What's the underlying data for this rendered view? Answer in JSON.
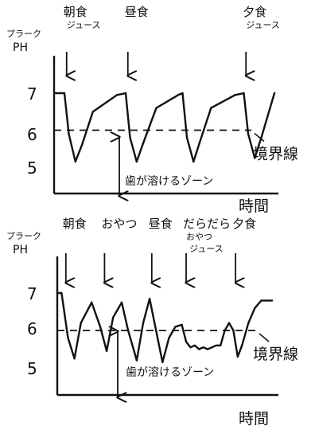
{
  "colors": {
    "ink": "#111111",
    "background": "#ffffff"
  },
  "chart_data": [
    {
      "type": "line",
      "ylabel_line1": "プラーク",
      "ylabel_line2": "PH",
      "xlabel": "時間",
      "ylim": [
        4.5,
        7.6
      ],
      "yticks": [
        "7",
        "6",
        "5"
      ],
      "threshold": 6,
      "threshold_label": "境界線",
      "zone_label": "歯が溶けるゾーン",
      "x": [
        0,
        4,
        6,
        9,
        12,
        17,
        28,
        32,
        34,
        37,
        40,
        46,
        56,
        58,
        60,
        63,
        66,
        71,
        82,
        86,
        88,
        91,
        94,
        100
      ],
      "values": [
        7.0,
        7.0,
        5.9,
        5.15,
        5.6,
        6.5,
        6.95,
        7.0,
        5.8,
        5.15,
        5.65,
        6.6,
        6.95,
        7.0,
        5.8,
        5.15,
        5.7,
        6.6,
        6.95,
        7.0,
        5.9,
        5.25,
        5.8,
        7.0
      ],
      "annotations": [
        {
          "label_lines": [
            "朝食",
            "ジュース"
          ],
          "x": 5
        },
        {
          "label_lines": [
            "昼食"
          ],
          "x": 33
        },
        {
          "label_lines": [
            "夕食",
            "ジュース"
          ],
          "x": 87
        }
      ]
    },
    {
      "type": "line",
      "ylabel_line1": "プラーク",
      "ylabel_line2": "PH",
      "xlabel": "時間",
      "ylim": [
        4.5,
        7.6
      ],
      "yticks": [
        "7",
        "6",
        "5"
      ],
      "threshold": 6,
      "threshold_label": "境界線",
      "zone_label": "歯が溶けるゾーン",
      "x": [
        0,
        2,
        5,
        8,
        11,
        16,
        20,
        23,
        26,
        30,
        33,
        37,
        40,
        43,
        46,
        49,
        52,
        55,
        58,
        60,
        62,
        64,
        66,
        68,
        70,
        72,
        74,
        76,
        78,
        80,
        82,
        84,
        86,
        89,
        92,
        95,
        100
      ],
      "values": [
        7.0,
        7.0,
        5.8,
        5.25,
        6.2,
        6.75,
        6.1,
        5.45,
        6.35,
        6.75,
        6.0,
        5.2,
        6.2,
        6.85,
        6.0,
        5.15,
        5.8,
        6.1,
        6.15,
        5.7,
        5.55,
        5.6,
        5.5,
        5.55,
        5.5,
        5.55,
        5.6,
        5.6,
        6.0,
        6.2,
        6.0,
        5.3,
        5.6,
        6.2,
        6.6,
        6.8,
        6.8
      ],
      "annotations": [
        {
          "label_lines": [
            "朝食"
          ],
          "x": 4
        },
        {
          "label_lines": [
            "おやつ"
          ],
          "x": 22
        },
        {
          "label_lines": [
            "昼食"
          ],
          "x": 44
        },
        {
          "label_lines": [
            "だらだら",
            "おやつ",
            "ジュース"
          ],
          "x": 60
        },
        {
          "label_lines": [
            "夕食"
          ],
          "x": 83
        }
      ]
    }
  ]
}
